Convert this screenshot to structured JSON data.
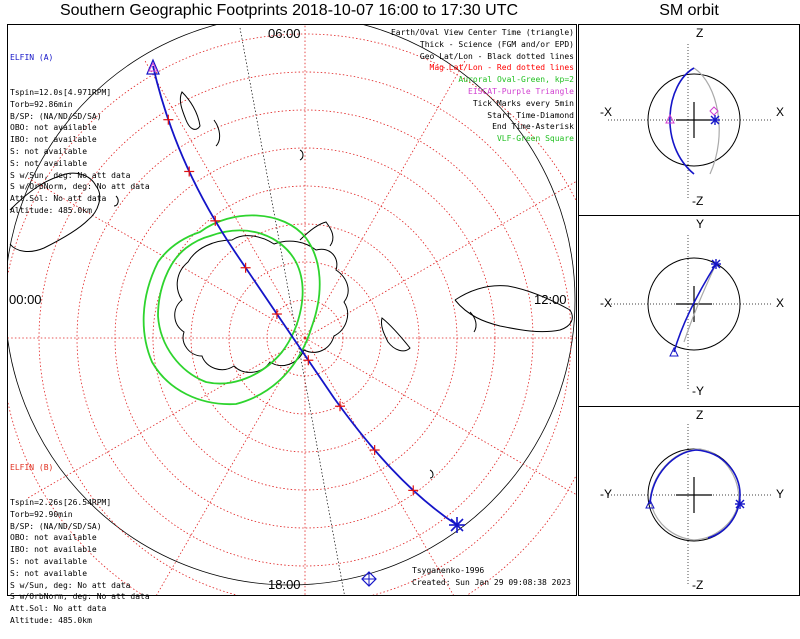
{
  "title": "Southern Geographic Footprints 2018-10-07 16:00 to 17:30 UTC",
  "sm_title": "SM orbit",
  "hour_labels": {
    "top": "06:00",
    "bottom": "18:00",
    "left": "00:00",
    "right": "12:00"
  },
  "elfin_a": {
    "name": "ELFIN (A)",
    "color": "#1515c8",
    "lines": [
      "Tspin=12.0s[4.971RPM]",
      "Torb=92.86min",
      "B/SP: (NA/ND/SD/SA)",
      "OBO: not available",
      "IBO: not available",
      "S: not available",
      "S: not available",
      "S w/Sun, deg: No att data",
      "S w/OrbNorm, deg: No att data",
      "Att.Sol: No att data",
      "Altitude: 485.0km"
    ]
  },
  "elfin_b": {
    "name": "ELFIN (B)",
    "color": "#e03020",
    "lines": [
      "Tspin=2.26s[26.54RPM]",
      "Torb=92.90min",
      "B/SP: (NA/ND/SD/SA)",
      "OBO: not available",
      "IBO: not available",
      "S: not available",
      "S: not available",
      "S w/Sun, deg: No att data",
      "S w/OrbNorm, deg: No att data",
      "Att.Sol: No att data",
      "Altitude: 485.0km"
    ]
  },
  "legend": [
    {
      "text": "Earth/Oval View Center Time (triangle)",
      "color": "#000000"
    },
    {
      "text": "Thick - Science (FGM and/or EPD)",
      "color": "#000000"
    },
    {
      "text": "Geo Lat/Lon - Black dotted lines",
      "color": "#000000"
    },
    {
      "text": "Mag Lat/Lon - Red dotted lines",
      "color": "#ff0000"
    },
    {
      "text": "Auroral Oval-Green, kp=2",
      "color": "#22c022"
    },
    {
      "text": "EISCAT-Purple Triangle",
      "color": "#d040d0"
    },
    {
      "text": "Tick Marks every 5min",
      "color": "#000000"
    },
    {
      "text": "Start Time-Diamond",
      "color": "#000000"
    },
    {
      "text": "End Time-Asterisk",
      "color": "#000000"
    },
    {
      "text": "VLF-Green Square",
      "color": "#22c022"
    }
  ],
  "footer": {
    "model": "Tsyganenko-1996",
    "created": "Created: Sun Jan 29 09:08:38 2023"
  },
  "sm_panels": [
    {
      "top": "Z",
      "bottom": "-Z",
      "left": "-X",
      "right": "X"
    },
    {
      "top": "Y",
      "bottom": "-Y",
      "left": "-X",
      "right": "X"
    },
    {
      "top": "Z",
      "bottom": "-Z",
      "left": "-Y",
      "right": "Y"
    }
  ],
  "colors": {
    "track": "#1515c8",
    "tick": "#e01010",
    "oval": "#2ed42e",
    "mag_grid": "#e02020",
    "geo_grid": "#000000",
    "orbit_b": "#aaaaaa"
  }
}
